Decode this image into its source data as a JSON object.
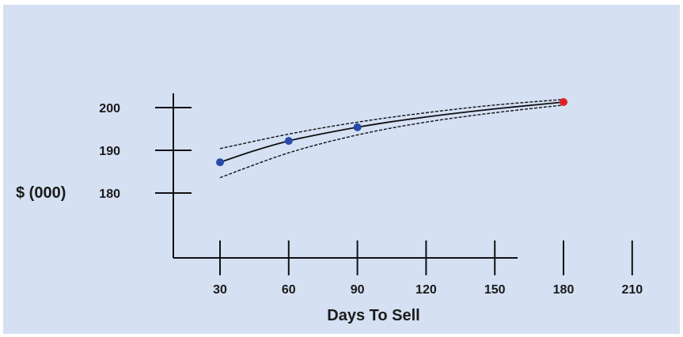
{
  "chart_data": {
    "type": "line",
    "title": "",
    "xlabel": "Days To Sell",
    "ylabel": "$ (000)",
    "x_ticks": [
      30,
      60,
      90,
      120,
      150,
      180,
      210
    ],
    "y_ticks": [
      180,
      190,
      200
    ],
    "grid": false,
    "series": [
      {
        "role": "data-points",
        "color": "#2a4aa8",
        "points": [
          {
            "x": 30,
            "y": 187.2
          },
          {
            "x": 60,
            "y": 192.2
          },
          {
            "x": 90,
            "y": 195.4
          }
        ]
      },
      {
        "role": "forecast-point",
        "color": "#e02020",
        "points": [
          {
            "x": 180,
            "y": 201.3
          }
        ]
      },
      {
        "role": "trend-line",
        "style": "solid",
        "color": "#111111",
        "points": [
          {
            "x": 30,
            "y": 187.2
          },
          {
            "x": 45,
            "y": 189.9
          },
          {
            "x": 60,
            "y": 192.2
          },
          {
            "x": 75,
            "y": 193.9
          },
          {
            "x": 90,
            "y": 195.4
          },
          {
            "x": 105,
            "y": 196.7
          },
          {
            "x": 120,
            "y": 197.8
          },
          {
            "x": 135,
            "y": 198.8
          },
          {
            "x": 150,
            "y": 199.7
          },
          {
            "x": 165,
            "y": 200.5
          },
          {
            "x": 180,
            "y": 201.3
          }
        ]
      },
      {
        "role": "upper-band",
        "style": "dashed",
        "color": "#111111",
        "points": [
          {
            "x": 30,
            "y": 190.4
          },
          {
            "x": 60,
            "y": 193.8
          },
          {
            "x": 90,
            "y": 196.6
          },
          {
            "x": 120,
            "y": 198.8
          },
          {
            "x": 150,
            "y": 200.6
          },
          {
            "x": 180,
            "y": 201.9
          }
        ]
      },
      {
        "role": "lower-band",
        "style": "dashed",
        "color": "#111111",
        "points": [
          {
            "x": 30,
            "y": 183.6
          },
          {
            "x": 60,
            "y": 189.4
          },
          {
            "x": 90,
            "y": 193.6
          },
          {
            "x": 120,
            "y": 196.6
          },
          {
            "x": 150,
            "y": 198.8
          },
          {
            "x": 180,
            "y": 200.6
          }
        ]
      }
    ]
  }
}
